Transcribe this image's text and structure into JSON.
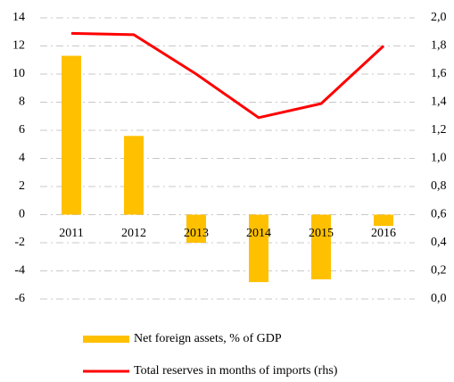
{
  "chart_data": {
    "type": "bar",
    "categories": [
      "2011",
      "2012",
      "2013",
      "2014",
      "2015",
      "2016"
    ],
    "series": [
      {
        "name": "Net foreign assets, % of GDP",
        "type": "bar",
        "color": "#ffc000",
        "values": [
          11.3,
          5.6,
          -2.0,
          -4.8,
          -4.6,
          -0.8
        ]
      },
      {
        "name": "Total reserves in months of imports (rhs)",
        "type": "line",
        "axis": "y2",
        "color": "#ff0000",
        "values": [
          1.89,
          1.88,
          1.6,
          1.29,
          1.39,
          1.8
        ]
      }
    ],
    "ylim": [
      -6,
      14
    ],
    "yticks": [
      -6,
      -4,
      -2,
      0,
      2,
      4,
      6,
      8,
      10,
      12,
      14
    ],
    "y2lim": [
      0,
      2
    ],
    "y2ticks": [
      {
        "value": 0,
        "label": "0,0"
      },
      {
        "value": 0.2,
        "label": "0,2"
      },
      {
        "value": 0.4,
        "label": "0,4"
      },
      {
        "value": 0.6,
        "label": "0,6"
      },
      {
        "value": 0.8,
        "label": "0,8"
      },
      {
        "value": 1,
        "label": "1,0"
      },
      {
        "value": 1.2,
        "label": "1,2"
      },
      {
        "value": 1.4,
        "label": "1,4"
      },
      {
        "value": 1.6,
        "label": "1,6"
      },
      {
        "value": 1.8,
        "label": "1,8"
      },
      {
        "value": 2,
        "label": "2,0"
      }
    ],
    "grid": true,
    "legend": "bottom"
  }
}
